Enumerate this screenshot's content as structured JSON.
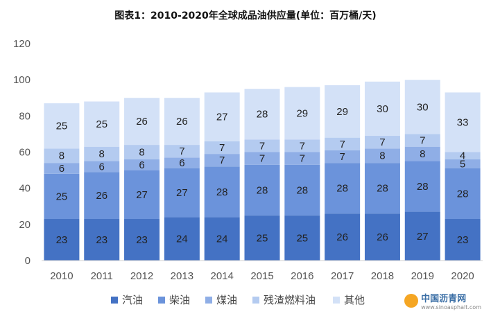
{
  "chart_data": {
    "type": "bar",
    "stacked": true,
    "title": "图表1：2010-2020年全球成品油供应量(单位：百万桶/天)",
    "categories": [
      "2010",
      "2011",
      "2012",
      "2013",
      "2014",
      "2015",
      "2016",
      "2017",
      "2018",
      "2019",
      "2020"
    ],
    "ylim": [
      0,
      120
    ],
    "yticks": [
      0,
      20,
      40,
      60,
      80,
      100,
      120
    ],
    "grid": false,
    "legend_position": "bottom",
    "series": [
      {
        "name": "汽油",
        "color": "#4472c4",
        "values": [
          23,
          23,
          23,
          24,
          24,
          25,
          25,
          26,
          26,
          27,
          23
        ]
      },
      {
        "name": "柴油",
        "color": "#6b93db",
        "values": [
          25,
          26,
          27,
          27,
          28,
          28,
          28,
          28,
          28,
          28,
          28
        ]
      },
      {
        "name": "煤油",
        "color": "#8faee6",
        "values": [
          6,
          6,
          6,
          6,
          7,
          7,
          7,
          7,
          8,
          8,
          5
        ]
      },
      {
        "name": "残渣燃料油",
        "color": "#b4cbf0",
        "values": [
          8,
          8,
          8,
          7,
          7,
          7,
          7,
          7,
          7,
          7,
          4
        ]
      },
      {
        "name": "其他",
        "color": "#d3e1f7",
        "values": [
          25,
          25,
          26,
          26,
          27,
          28,
          29,
          29,
          30,
          30,
          33
        ]
      }
    ]
  },
  "logo": {
    "cn": "中国沥青网",
    "en": "www.sinoasphalt.com"
  }
}
